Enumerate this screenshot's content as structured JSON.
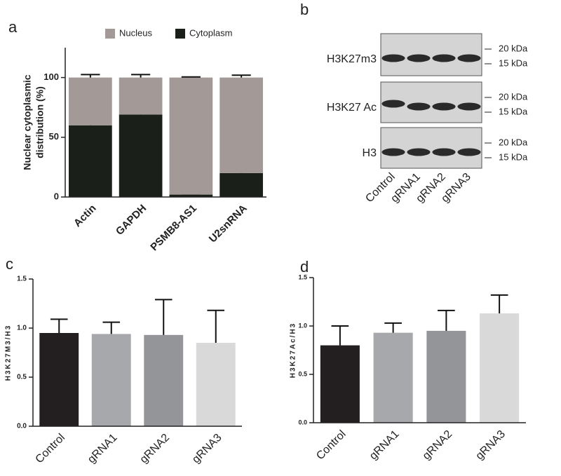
{
  "chart_data": [
    {
      "panel": "a",
      "type": "stacked_bar",
      "ylabel": [
        "Nuclear cytoplasmic",
        "distribution (%)"
      ],
      "categories": [
        "Actin",
        "GAPDH",
        "PSMB8-AS1",
        "U2snRNA"
      ],
      "series": [
        {
          "name": "Cytoplasm",
          "color": "#1a1f1a",
          "values": [
            60,
            69,
            2,
            20
          ],
          "errors": [
            2.5,
            2.5,
            0.5,
            2
          ]
        },
        {
          "name": "Nucleus",
          "color": "#a39a98",
          "values": [
            40,
            31,
            98,
            80
          ],
          "errors": [
            2.5,
            2.5,
            0.5,
            2
          ]
        }
      ],
      "ylim": [
        0,
        125
      ],
      "yticks": [
        0,
        50,
        100
      ]
    },
    {
      "panel": "b",
      "type": "blot",
      "rows": [
        {
          "label": "H3K27m3",
          "markers": [
            "20 kDa",
            "15 kDa"
          ]
        },
        {
          "label": "H3K27 Ac",
          "markers": [
            "20 kDa",
            "15 kDa"
          ]
        },
        {
          "label": "H3",
          "markers": [
            "20 kDa",
            "15 kDa"
          ]
        }
      ],
      "lanes": [
        "Control",
        "gRNA1",
        "gRNA2",
        "gRNA3"
      ]
    },
    {
      "panel": "c",
      "type": "bar",
      "ylabel": "H3K27M3/H3",
      "categories": [
        "Control",
        "gRNA1",
        "gRNA2",
        "gRNA3"
      ],
      "values": [
        0.95,
        0.94,
        0.93,
        0.85
      ],
      "errors": [
        0.14,
        0.12,
        0.36,
        0.33
      ],
      "colors": [
        "#231f20",
        "#a7a8ab",
        "#939598",
        "#d9d9d9"
      ],
      "ylim": [
        0,
        1.5
      ],
      "yticks": [
        {
          "value": 0,
          "label": "0.0"
        },
        {
          "value": 0.5,
          "label": "0.5"
        },
        {
          "value": 1,
          "label": "1.0"
        },
        {
          "value": 1.5,
          "label": "1.5"
        }
      ]
    },
    {
      "panel": "d",
      "type": "bar",
      "ylabel": "H3K27Ac/H3",
      "categories": [
        "Control",
        "gRNA1",
        "gRNA2",
        "gRNA3"
      ],
      "values": [
        0.8,
        0.93,
        0.95,
        1.13
      ],
      "errors": [
        0.2,
        0.1,
        0.21,
        0.19
      ],
      "colors": [
        "#231f20",
        "#a7a8ab",
        "#939598",
        "#d9d9d9"
      ],
      "ylim": [
        0,
        1.5
      ],
      "yticks": [
        {
          "value": 0,
          "label": "0.0"
        },
        {
          "value": 0.5,
          "label": "0.5"
        },
        {
          "value": 1,
          "label": "1.0"
        },
        {
          "value": 1.5,
          "label": "1.5"
        }
      ]
    }
  ]
}
